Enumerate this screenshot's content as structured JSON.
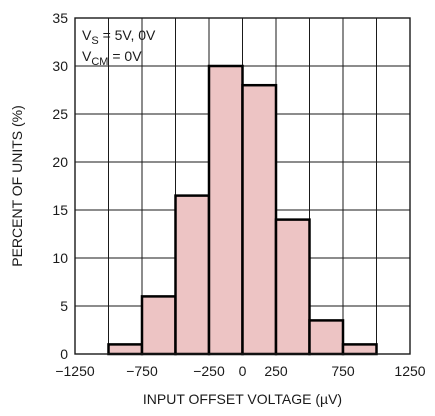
{
  "chart_data": {
    "type": "bar",
    "title": "",
    "xlabel": "INPUT OFFSET VOLTAGE (µV)",
    "ylabel": "PERCENT OF UNITS (%)",
    "xlim": [
      -1250,
      1250
    ],
    "ylim": [
      0,
      35
    ],
    "x_ticks": [
      -1250,
      -750,
      -250,
      0,
      250,
      750,
      1250
    ],
    "x_tick_labels": [
      "−1250",
      "−750",
      "−250",
      "0",
      "250",
      "750",
      "1250"
    ],
    "y_ticks": [
      0,
      5,
      10,
      15,
      20,
      25,
      30,
      35
    ],
    "y_tick_labels": [
      "0",
      "5",
      "10",
      "15",
      "20",
      "25",
      "30",
      "35"
    ],
    "grid": true,
    "bin_edges": [
      -1000,
      -750,
      -500,
      -250,
      0,
      250,
      500,
      750,
      1000
    ],
    "values": [
      1,
      6,
      16.5,
      30,
      28,
      14,
      3.5,
      1
    ],
    "annotations": [
      {
        "main": "V",
        "sub": "S",
        "rest": " = 5V, 0V"
      },
      {
        "main": "V",
        "sub": "CM",
        "rest": " = 0V"
      }
    ]
  },
  "colors": {
    "bar_fill": "#EDC4C4",
    "bar_edge": "#000000",
    "grid": "#1a1a1a",
    "text": "#1a1a1a"
  }
}
